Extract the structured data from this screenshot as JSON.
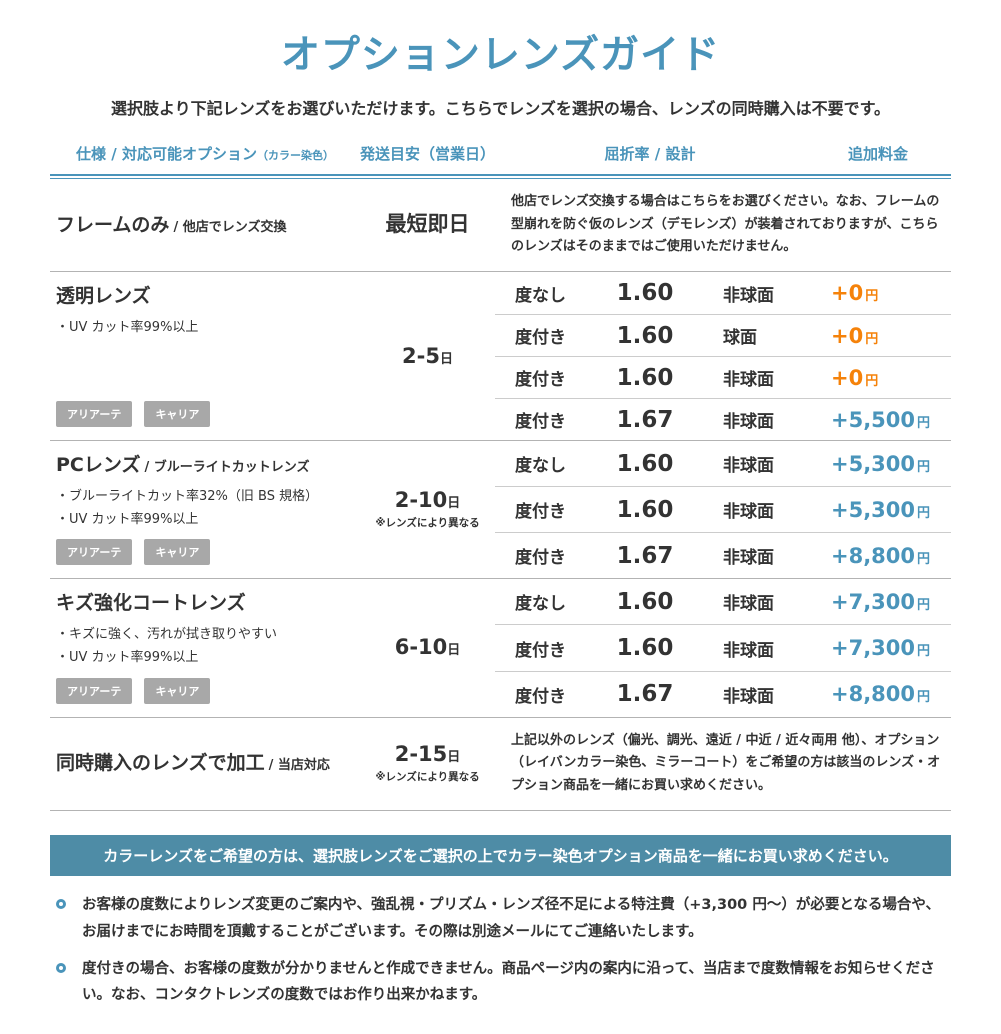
{
  "page": {
    "title": "オプションレンズガイド",
    "subtitle": "選択肢より下記レンズをお選びいただけます。こちらでレンズを選択の場合、レンズの同時購入は不要です。"
  },
  "colors": {
    "accent": "#4a94ba",
    "orange": "#f5820a",
    "banner": "#4e8ca6",
    "badge": "#a8a8a8",
    "ink": "#333333"
  },
  "table": {
    "headers": {
      "spec": "仕様 / 対応可能オプション",
      "spec_small": "（カラー染色）",
      "shipping": "発送目安（営業日）",
      "index_design": "屈折率 / 設計",
      "price": "追加料金"
    },
    "rows": [
      {
        "title": "フレームのみ",
        "title_suffix": "/ 他店でレンズ交換",
        "shipping": "最短即日",
        "description": "他店でレンズ交換する場合はこちらをお選びください。なお、フレームの型崩れを防ぐ仮のレンズ（デモレンズ）が装着されておりますが、こちらのレンズはそのままではご使用いただけません。"
      },
      {
        "title": "透明レンズ",
        "features": [
          "・UV カット率99%以上"
        ],
        "badges": [
          "アリアーテ",
          "キャリア"
        ],
        "shipping": "2-5",
        "shipping_unit": "日",
        "options": [
          {
            "rx": "度なし",
            "index": "1.60",
            "design": "非球面",
            "price": "+0",
            "price_unit": "円",
            "price_color": "#f5820a"
          },
          {
            "rx": "度付き",
            "index": "1.60",
            "design": "球面",
            "price": "+0",
            "price_unit": "円",
            "price_color": "#f5820a"
          },
          {
            "rx": "度付き",
            "index": "1.60",
            "design": "非球面",
            "price": "+0",
            "price_unit": "円",
            "price_color": "#f5820a"
          },
          {
            "rx": "度付き",
            "index": "1.67",
            "design": "非球面",
            "price": "+5,500",
            "price_unit": "円",
            "price_color": "#4a94ba"
          }
        ]
      },
      {
        "title": "PCレンズ",
        "title_suffix": "/ ブルーライトカットレンズ",
        "features": [
          "・ブルーライトカット率32%（旧 BS 規格）",
          "・UV カット率99%以上"
        ],
        "badges": [
          "アリアーテ",
          "キャリア"
        ],
        "shipping": "2-10",
        "shipping_unit": "日",
        "shipping_note": "※レンズにより異なる",
        "options": [
          {
            "rx": "度なし",
            "index": "1.60",
            "design": "非球面",
            "price": "+5,300",
            "price_unit": "円",
            "price_color": "#4a94ba"
          },
          {
            "rx": "度付き",
            "index": "1.60",
            "design": "非球面",
            "price": "+5,300",
            "price_unit": "円",
            "price_color": "#4a94ba"
          },
          {
            "rx": "度付き",
            "index": "1.67",
            "design": "非球面",
            "price": "+8,800",
            "price_unit": "円",
            "price_color": "#4a94ba"
          }
        ]
      },
      {
        "title": "キズ強化コートレンズ",
        "features": [
          "・キズに強く、汚れが拭き取りやすい",
          "・UV カット率99%以上"
        ],
        "badges": [
          "アリアーテ",
          "キャリア"
        ],
        "shipping": "6-10",
        "shipping_unit": "日",
        "options": [
          {
            "rx": "度なし",
            "index": "1.60",
            "design": "非球面",
            "price": "+7,300",
            "price_unit": "円",
            "price_color": "#4a94ba"
          },
          {
            "rx": "度付き",
            "index": "1.60",
            "design": "非球面",
            "price": "+7,300",
            "price_unit": "円",
            "price_color": "#4a94ba"
          },
          {
            "rx": "度付き",
            "index": "1.67",
            "design": "非球面",
            "price": "+8,800",
            "price_unit": "円",
            "price_color": "#4a94ba"
          }
        ]
      },
      {
        "title": "同時購入のレンズで加工",
        "title_suffix": "/ 当店対応",
        "shipping": "2-15",
        "shipping_unit": "日",
        "shipping_note": "※レンズにより異なる",
        "description": "上記以外のレンズ（偏光、調光、遠近 / 中近 / 近々両用 他）、オプション（レイバンカラー染色、ミラーコート）をご希望の方は該当のレンズ・オプション商品を一緒にお買い求めください。"
      }
    ]
  },
  "banner": {
    "text": "カラーレンズをご希望の方は、選択肢レンズをご選択の上でカラー染色オプション商品を一緒にお買い求めください。"
  },
  "notes": [
    "お客様の度数によりレンズ変更のご案内や、強乱視・プリズム・レンズ径不足による特注費（+3,300 円～）が必要となる場合や、お届けまでにお時間を頂戴することがございます。その際は別途メールにてご連絡いたします。",
    "度付きの場合、お客様の度数が分かりませんと作成できません。商品ページ内の案内に沿って、当店まで度数情報をお知らせください。なお、コンタクトレンズの度数ではお作り出来かねます。"
  ]
}
